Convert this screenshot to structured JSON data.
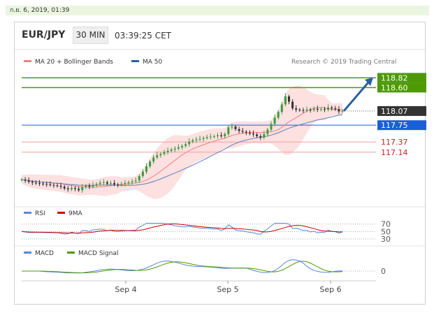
{
  "timestamp": "ก.ย. 6, 2019, 01:39",
  "header": {
    "pair": "EUR/JPY",
    "timeframe": "30 MIN",
    "clock": "03:39:25 CET"
  },
  "legends": {
    "ma20": "MA 20 + Bollinger Bands",
    "ma50": "MA 50",
    "rsi": "RSI",
    "rsi_signal": "9MA",
    "macd": "MACD",
    "macd_signal": "MACD Signal"
  },
  "credit": "Research © 2019 Trading Central",
  "colors": {
    "up": "#3d9b3d",
    "down": "#333333",
    "ma20": "#f08080",
    "bollinger": "#fde0e0",
    "ma50": "#5a7fbf",
    "resistance": "#4e9a06",
    "support": "#1a5fd6",
    "target": "#e06060",
    "price": "#333333",
    "arrow": "#2c5f9e",
    "rsi": "#5b86d6",
    "rsi_signal": "#cc0000",
    "macd": "#5b86d6",
    "macd_signal": "#4e9a06"
  },
  "chart_data": {
    "type": "candlestick",
    "x_labels": [
      "Sep 4",
      "Sep 5",
      "Sep 6"
    ],
    "levels": [
      {
        "name": "resistance-2",
        "value": 118.82,
        "label": "118.82",
        "kind": "resistance"
      },
      {
        "name": "resistance-1",
        "value": 118.6,
        "label": "118.60",
        "kind": "resistance"
      },
      {
        "name": "last-price",
        "value": 118.07,
        "label": "118.07",
        "kind": "price"
      },
      {
        "name": "support-1",
        "value": 117.75,
        "label": "117.75",
        "kind": "support"
      },
      {
        "name": "target-1",
        "value": 117.37,
        "label": "117.37",
        "kind": "target"
      },
      {
        "name": "target-2",
        "value": 117.14,
        "label": "117.14",
        "kind": "target"
      }
    ],
    "close": [
      116.52,
      116.5,
      116.47,
      116.45,
      116.44,
      116.43,
      116.42,
      116.41,
      116.4,
      116.39,
      116.38,
      116.36,
      116.32,
      116.3,
      116.33,
      116.31,
      116.28,
      116.35,
      116.38,
      116.36,
      116.4,
      116.42,
      116.45,
      116.46,
      116.43,
      116.44,
      116.41,
      116.4,
      116.42,
      116.44,
      116.46,
      116.48,
      116.5,
      116.6,
      116.7,
      116.82,
      116.93,
      117.02,
      117.07,
      117.1,
      117.14,
      117.17,
      117.2,
      117.22,
      117.25,
      117.28,
      117.32,
      117.38,
      117.41,
      117.43,
      117.44,
      117.46,
      117.48,
      117.49,
      117.5,
      117.52,
      117.5,
      117.55,
      117.7,
      117.72,
      117.66,
      117.62,
      117.6,
      117.58,
      117.56,
      117.54,
      117.5,
      117.47,
      117.55,
      117.65,
      117.78,
      117.92,
      118.05,
      118.22,
      118.4,
      118.28,
      118.13,
      118.1,
      118.09,
      118.08,
      118.1,
      118.09,
      118.12,
      118.1,
      118.11,
      118.1,
      118.15,
      118.13,
      118.11,
      118.06,
      118.07
    ],
    "macd_zero": 0,
    "rsi_levels": [
      70,
      50,
      30
    ]
  }
}
